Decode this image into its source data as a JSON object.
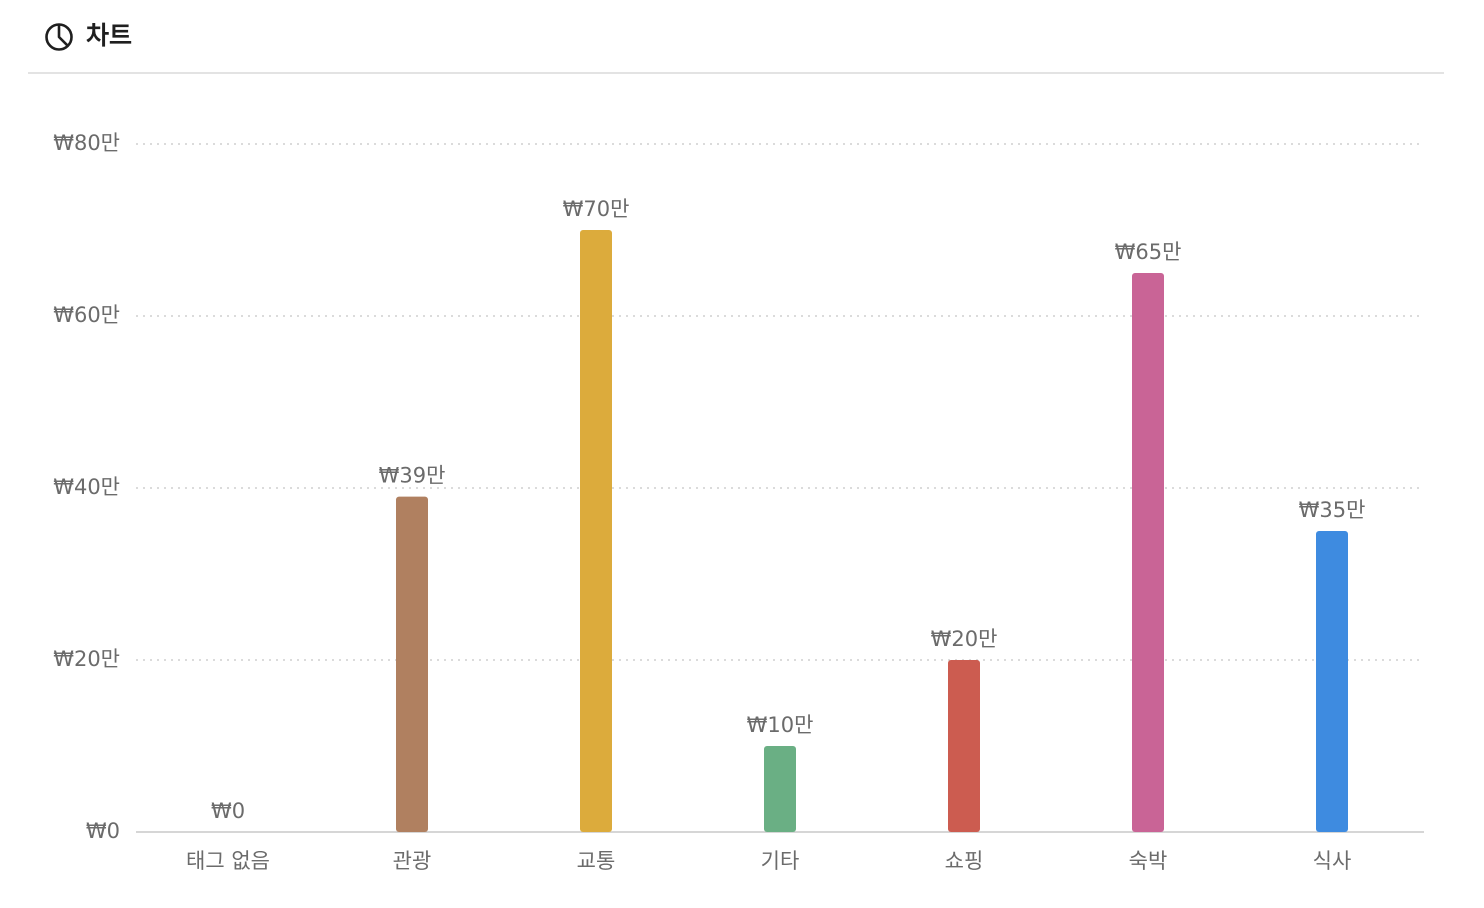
{
  "header": {
    "title": "차트",
    "icon": "pie-chart-icon"
  },
  "chart_data": {
    "type": "bar",
    "categories": [
      "태그 없음",
      "관광",
      "교통",
      "기타",
      "쇼핑",
      "숙박",
      "식사"
    ],
    "values": [
      0,
      390000,
      700000,
      100000,
      200000,
      650000,
      350000
    ],
    "value_labels": [
      "₩0",
      "₩39만",
      "₩70만",
      "₩10만",
      "₩20만",
      "₩65만",
      "₩35만"
    ],
    "colors": [
      "#b0b0b0",
      "#b08060",
      "#dcab3c",
      "#6aaf84",
      "#cc5c50",
      "#c96496",
      "#3e8be0"
    ],
    "y_ticks": [
      0,
      200000,
      400000,
      600000,
      800000
    ],
    "y_tick_labels": [
      "₩0",
      "₩20만",
      "₩40만",
      "₩60만",
      "₩80만"
    ],
    "ylim": [
      0,
      800000
    ],
    "grid": true,
    "legend": "none"
  }
}
